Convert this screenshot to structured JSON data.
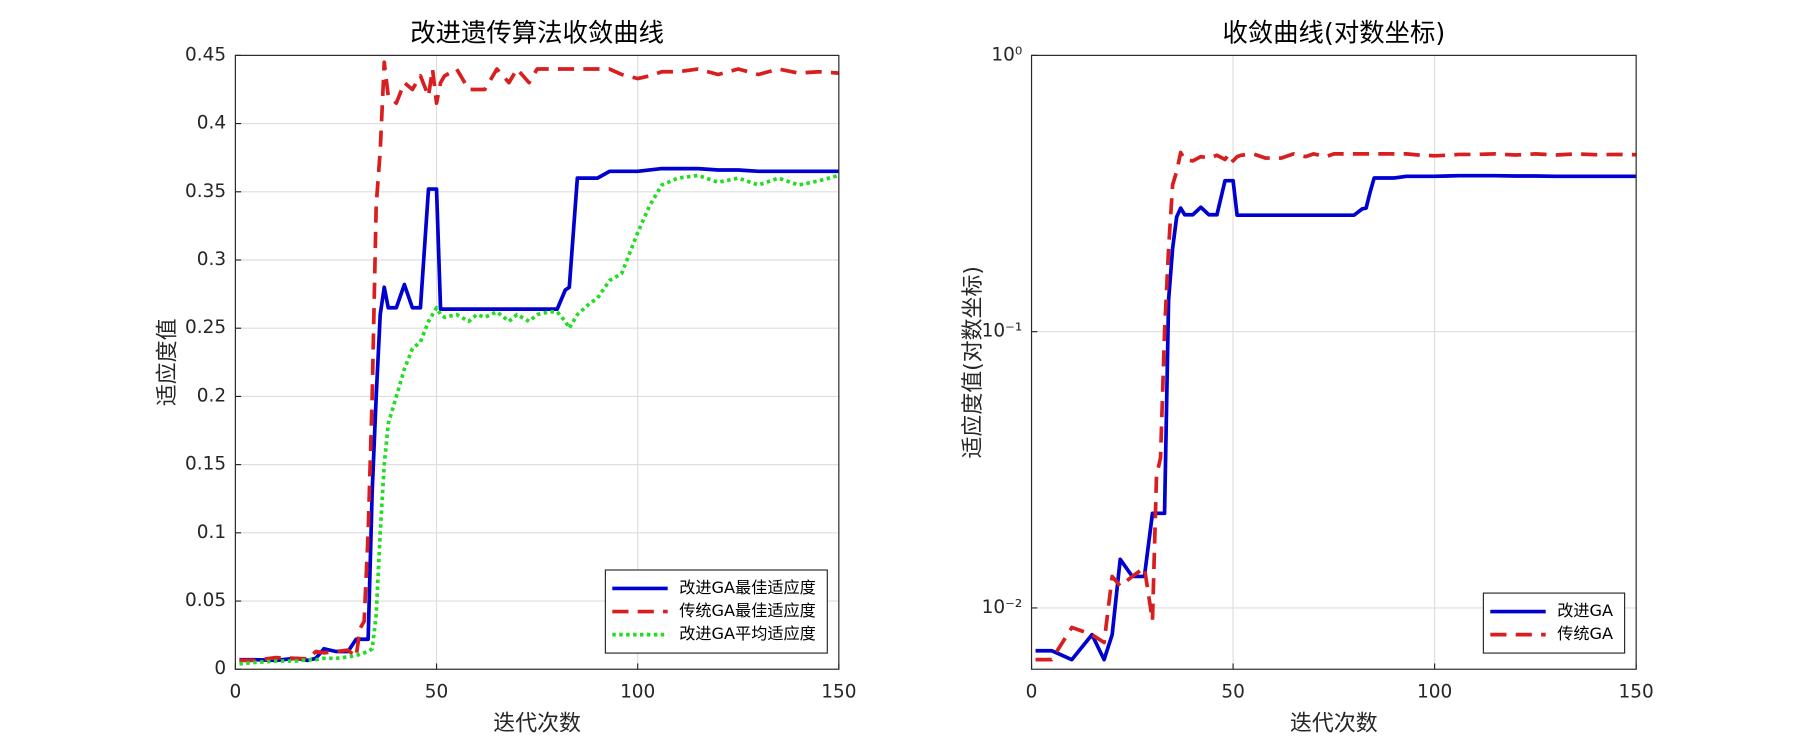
{
  "chart_data": [
    {
      "type": "line",
      "title": "改进遗传算法收敛曲线",
      "xlabel": "迭代次数",
      "ylabel": "适应度值",
      "x": [
        1,
        5,
        10,
        15,
        18,
        20,
        22,
        25,
        28,
        30,
        31,
        32,
        33,
        34,
        35,
        36,
        37,
        38,
        40,
        42,
        44,
        46,
        48,
        49,
        50,
        51,
        52,
        55,
        58,
        60,
        62,
        65,
        68,
        70,
        73,
        75,
        78,
        80,
        82,
        83,
        84,
        85,
        88,
        90,
        93,
        96,
        100,
        103,
        106,
        110,
        115,
        120,
        125,
        130,
        135,
        140,
        145,
        150
      ],
      "series": [
        {
          "name": "改进GA最佳适应度",
          "color": "#0000d0",
          "style": "solid",
          "values": [
            0.007,
            0.007,
            0.0065,
            0.008,
            0.0065,
            0.008,
            0.015,
            0.013,
            0.013,
            0.022,
            0.022,
            0.022,
            0.022,
            0.13,
            0.2,
            0.26,
            0.28,
            0.265,
            0.265,
            0.282,
            0.265,
            0.265,
            0.352,
            0.352,
            0.352,
            0.264,
            0.264,
            0.264,
            0.264,
            0.264,
            0.264,
            0.264,
            0.264,
            0.264,
            0.264,
            0.264,
            0.264,
            0.264,
            0.278,
            0.28,
            0.32,
            0.36,
            0.36,
            0.36,
            0.365,
            0.365,
            0.365,
            0.366,
            0.367,
            0.367,
            0.367,
            0.366,
            0.366,
            0.365,
            0.365,
            0.365,
            0.365,
            0.365
          ]
        },
        {
          "name": "传统GA最佳适应度",
          "color": "#d81e1e",
          "style": "dashed",
          "values": [
            0.0065,
            0.0065,
            0.0085,
            0.008,
            0.0075,
            0.013,
            0.012,
            0.013,
            0.014,
            0.009,
            0.03,
            0.035,
            0.1,
            0.2,
            0.34,
            0.38,
            0.445,
            0.42,
            0.415,
            0.43,
            0.425,
            0.435,
            0.42,
            0.44,
            0.415,
            0.43,
            0.435,
            0.44,
            0.425,
            0.425,
            0.425,
            0.44,
            0.43,
            0.44,
            0.43,
            0.44,
            0.44,
            0.44,
            0.44,
            0.44,
            0.44,
            0.44,
            0.44,
            0.44,
            0.44,
            0.436,
            0.433,
            0.435,
            0.438,
            0.438,
            0.44,
            0.436,
            0.44,
            0.436,
            0.44,
            0.437,
            0.438,
            0.437
          ]
        },
        {
          "name": "改进GA平均适应度",
          "color": "#22dd22",
          "style": "dotted",
          "values": [
            0.004,
            0.005,
            0.006,
            0.006,
            0.007,
            0.007,
            0.008,
            0.008,
            0.009,
            0.01,
            0.011,
            0.012,
            0.013,
            0.015,
            0.04,
            0.1,
            0.15,
            0.18,
            0.2,
            0.22,
            0.235,
            0.24,
            0.255,
            0.26,
            0.265,
            0.26,
            0.258,
            0.26,
            0.255,
            0.26,
            0.258,
            0.262,
            0.255,
            0.26,
            0.255,
            0.26,
            0.262,
            0.262,
            0.255,
            0.25,
            0.255,
            0.26,
            0.268,
            0.272,
            0.285,
            0.29,
            0.32,
            0.34,
            0.355,
            0.36,
            0.362,
            0.357,
            0.36,
            0.355,
            0.36,
            0.355,
            0.358,
            0.362
          ]
        }
      ],
      "xlim": [
        0,
        150
      ],
      "xticks": [
        0,
        50,
        100,
        150
      ],
      "ylim": [
        0,
        0.45
      ],
      "yticks": [
        0,
        0.05,
        0.1,
        0.15,
        0.2,
        0.25,
        0.3,
        0.35,
        0.4,
        0.45
      ],
      "grid": true,
      "log_y": false,
      "legend": "southeast"
    },
    {
      "type": "line",
      "title": "收敛曲线(对数坐标)",
      "xlabel": "迭代次数",
      "ylabel": "适应度值(对数坐标)",
      "x": [
        1,
        5,
        10,
        15,
        18,
        20,
        22,
        25,
        28,
        30,
        31,
        32,
        33,
        34,
        35,
        36,
        37,
        38,
        40,
        42,
        44,
        46,
        48,
        49,
        50,
        51,
        52,
        55,
        58,
        60,
        62,
        65,
        68,
        70,
        73,
        75,
        78,
        80,
        82,
        83,
        84,
        85,
        88,
        90,
        93,
        96,
        100,
        103,
        106,
        110,
        115,
        120,
        125,
        130,
        135,
        140,
        145,
        150
      ],
      "series": [
        {
          "name": "改进GA",
          "color": "#0000d0",
          "style": "solid",
          "values": [
            0.007,
            0.007,
            0.0065,
            0.008,
            0.0065,
            0.008,
            0.015,
            0.013,
            0.013,
            0.022,
            0.022,
            0.022,
            0.022,
            0.13,
            0.2,
            0.26,
            0.28,
            0.265,
            0.265,
            0.282,
            0.265,
            0.265,
            0.352,
            0.352,
            0.352,
            0.264,
            0.264,
            0.264,
            0.264,
            0.264,
            0.264,
            0.264,
            0.264,
            0.264,
            0.264,
            0.264,
            0.264,
            0.264,
            0.278,
            0.28,
            0.32,
            0.36,
            0.36,
            0.36,
            0.365,
            0.365,
            0.365,
            0.366,
            0.367,
            0.367,
            0.367,
            0.366,
            0.366,
            0.365,
            0.365,
            0.365,
            0.365,
            0.365
          ]
        },
        {
          "name": "传统GA",
          "color": "#d81e1e",
          "style": "dashed",
          "values": [
            0.0065,
            0.0065,
            0.0085,
            0.008,
            0.0075,
            0.013,
            0.012,
            0.013,
            0.014,
            0.009,
            0.03,
            0.035,
            0.1,
            0.2,
            0.34,
            0.38,
            0.445,
            0.42,
            0.415,
            0.43,
            0.425,
            0.435,
            0.42,
            0.44,
            0.415,
            0.43,
            0.435,
            0.44,
            0.425,
            0.425,
            0.425,
            0.44,
            0.43,
            0.44,
            0.43,
            0.44,
            0.44,
            0.44,
            0.44,
            0.44,
            0.44,
            0.44,
            0.44,
            0.44,
            0.44,
            0.436,
            0.433,
            0.435,
            0.438,
            0.438,
            0.44,
            0.436,
            0.44,
            0.436,
            0.44,
            0.437,
            0.438,
            0.437
          ]
        }
      ],
      "xlim": [
        0,
        150
      ],
      "xticks": [
        0,
        50,
        100,
        150
      ],
      "ylim": [
        0.006,
        1
      ],
      "yticks": [
        {
          "value": 0.01,
          "label": "10⁻²"
        },
        {
          "value": 0.1,
          "label": "10⁻¹"
        },
        {
          "value": 1,
          "label": "10⁰"
        }
      ],
      "grid": true,
      "log_y": true,
      "legend": "southeast"
    }
  ]
}
